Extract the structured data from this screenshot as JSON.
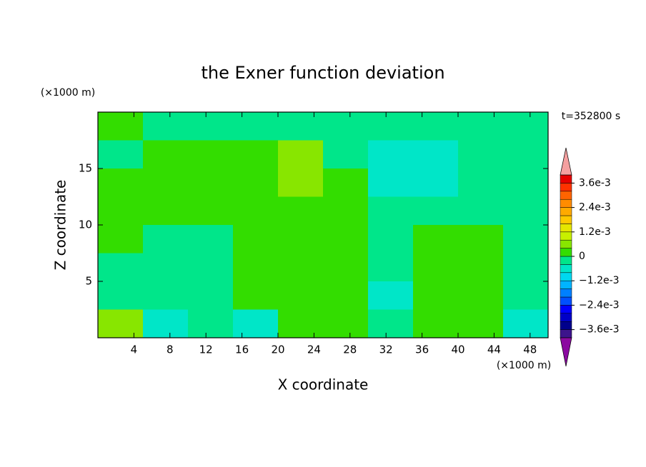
{
  "chart_data": {
    "type": "contourf",
    "title": "the Exner function deviation",
    "xlabel": "X coordinate",
    "ylabel": "Z coordinate",
    "x_unit": "(×1000 m)",
    "y_unit": "(×1000 m)",
    "annotation": "t=352800 s",
    "x": [
      2.5,
      7.5,
      12.5,
      17.5,
      22.5,
      27.5,
      32.5,
      37.5,
      42.5,
      47.5
    ],
    "y": [
      18.75,
      16.25,
      13.75,
      11.25,
      8.75,
      6.25,
      3.75,
      1.25
    ],
    "z": [
      [
        0.0002,
        -0.0002,
        -0.0002,
        -0.0002,
        -0.0002,
        -0.0002,
        -0.0002,
        -0.0002,
        -0.0002,
        -0.0002
      ],
      [
        -0.0002,
        0.0002,
        0.0002,
        0.0002,
        0.0006,
        -0.0002,
        -0.0006,
        -0.0006,
        -0.0002,
        -0.0002
      ],
      [
        0.0002,
        0.0002,
        0.0002,
        0.0002,
        0.0006,
        0.0002,
        -0.0006,
        -0.0006,
        -0.0002,
        -0.0002
      ],
      [
        0.0002,
        0.0002,
        0.0002,
        0.0002,
        0.0002,
        0.0002,
        -0.0002,
        -0.0002,
        -0.0002,
        -0.0002
      ],
      [
        0.0002,
        -0.0002,
        -0.0002,
        0.0002,
        0.0002,
        0.0002,
        -0.0002,
        0.0002,
        0.0002,
        -0.0002
      ],
      [
        -0.0002,
        -0.0002,
        -0.0002,
        0.0002,
        0.0002,
        0.0002,
        -0.0002,
        0.0002,
        0.0002,
        -0.0002
      ],
      [
        -0.0002,
        -0.0002,
        -0.0002,
        0.0002,
        0.0002,
        0.0002,
        -0.0006,
        0.0002,
        0.0002,
        -0.0002
      ],
      [
        0.0006,
        -0.0006,
        -0.0002,
        -0.0006,
        0.0002,
        0.0002,
        -0.0002,
        0.0002,
        0.0002,
        -0.0006
      ]
    ],
    "xlim": [
      0,
      50
    ],
    "ylim": [
      0,
      20
    ],
    "xticks": [
      4,
      8,
      12,
      16,
      20,
      24,
      28,
      32,
      36,
      40,
      44,
      48
    ],
    "yticks": [
      5,
      10,
      15
    ],
    "clim": [
      -0.004,
      0.004
    ],
    "cticks": [
      {
        "value": -0.0036,
        "label": "−3.6e-3"
      },
      {
        "value": -0.0024,
        "label": "−2.4e-3"
      },
      {
        "value": -0.0012,
        "label": "−1.2e-3"
      },
      0,
      {
        "value": 0.0012,
        "label": "1.2e-3"
      },
      {
        "value": 0.0024,
        "label": "2.4e-3"
      },
      {
        "value": 0.0036,
        "label": "3.6e-3"
      }
    ],
    "colors": [
      "#3c148c",
      "#00008c",
      "#0000c8",
      "#0000ff",
      "#0050ff",
      "#0080ff",
      "#00b4ff",
      "#00d8f0",
      "#00e6c8",
      "#00e68a",
      "#33dd00",
      "#88e600",
      "#c8f000",
      "#e6e600",
      "#ffc800",
      "#ffaa00",
      "#ff8c00",
      "#ff6400",
      "#ff3200",
      "#e60000"
    ],
    "under_color": "#8b0aa0",
    "over_color": "#f5a0a0"
  }
}
